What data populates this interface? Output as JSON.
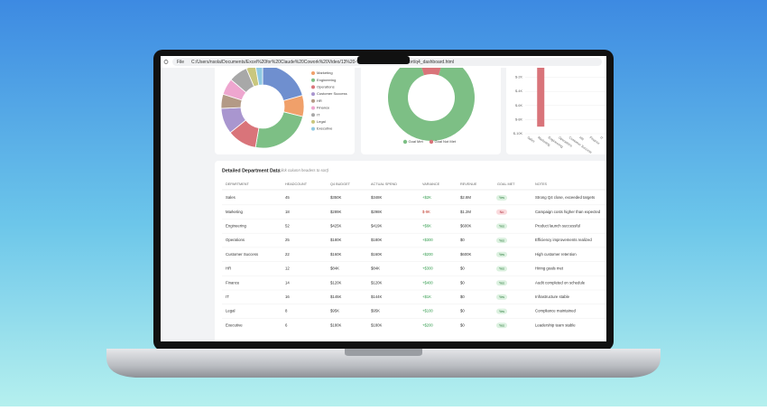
{
  "browser": {
    "tab_label": "File",
    "url_start": "C:/Users/nsola/Documents/Excel%20for%20Claude%20Cowork%20Video/13%20-%20",
    "url_end": "ort/q4_dashboard.html"
  },
  "charts": {
    "department_donut": {
      "colors": [
        "#6f8fcf",
        "#f0a06a",
        "#7dbf85",
        "#d9747a",
        "#a996cf",
        "#b39a86",
        "#eea6cf",
        "#a8a8a8",
        "#c9c77e",
        "#8fc9e2"
      ]
    },
    "goal_donut": {
      "legend": [
        "Goal Met",
        "Goal Not Met"
      ],
      "colors": [
        "#7dbf85",
        "#d9747a"
      ]
    },
    "variance_bar": {
      "ylim": [
        -10,
        0
      ],
      "yticks": [
        {
          "value": -2,
          "label": "$-2K"
        },
        {
          "value": -4,
          "label": "$-4K"
        },
        {
          "value": -6,
          "label": "$-6K"
        },
        {
          "value": -8,
          "label": "$-8K"
        },
        {
          "value": -10,
          "label": "$-10K"
        }
      ],
      "colors": [
        "#7dbf85",
        "#d9747a"
      ]
    }
  },
  "table": {
    "title": "Detailed Department Data",
    "hint": "(click column headers to sort)",
    "columns": [
      "DEPARTMENT",
      "HEADCOUNT",
      "Q4 BUDGET",
      "ACTUAL SPEND",
      "VARIANCE",
      "REVENUE",
      "GOAL MET",
      "NOTES"
    ],
    "rows": [
      [
        "Sales",
        45,
        "$350K",
        "$348K",
        {
          "value": 2,
          "label": "+$2K"
        },
        "$2.8M",
        "Yes",
        "Strong Q4 close, exceeded targets"
      ],
      [
        "Marketing",
        18,
        "$289K",
        "$298K",
        {
          "value": -9,
          "label": "$-9K"
        },
        "$1.2M",
        "No",
        "Campaign costs higher than expected"
      ],
      [
        "Engineering",
        52,
        "$425K",
        "$419K",
        {
          "value": 6,
          "label": "+$6K"
        },
        "$600K",
        "Yes",
        "Product launch successful"
      ],
      [
        "Operations",
        25,
        "$180K",
        "$180K",
        {
          "value": 0.3,
          "label": "+$300"
        },
        "$0",
        "Yes",
        "Efficiency improvements realized"
      ],
      [
        "Customer Success",
        22,
        "$160K",
        "$160K",
        {
          "value": 0.2,
          "label": "+$200"
        },
        "$600K",
        "Yes",
        "High customer retention"
      ],
      [
        "HR",
        12,
        "$84K",
        "$84K",
        {
          "value": 0.3,
          "label": "+$300"
        },
        "$0",
        "Yes",
        "Hiring goals met"
      ],
      [
        "Finance",
        14,
        "$120K",
        "$120K",
        {
          "value": 0.4,
          "label": "+$400"
        },
        "$0",
        "Yes",
        "Audit completed on schedule"
      ],
      [
        "IT",
        16,
        "$145K",
        "$144K",
        {
          "value": 1,
          "label": "+$1K"
        },
        "$0",
        "Yes",
        "Infrastructure stable"
      ],
      [
        "Legal",
        8,
        "$95K",
        "$95K",
        {
          "value": 0.1,
          "label": "+$100"
        },
        "$0",
        "Yes",
        "Compliance maintained"
      ],
      [
        "Executive",
        6,
        "$180K",
        "$180K",
        {
          "value": 0.2,
          "label": "+$200"
        },
        "$0",
        "Yes",
        "Leadership team stable"
      ]
    ]
  }
}
